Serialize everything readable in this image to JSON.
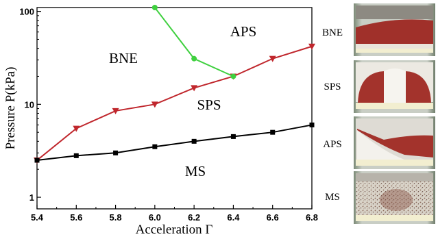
{
  "chart_data": {
    "type": "line",
    "xlabel": "Acceleration Γ",
    "ylabel": "Pressure P(kPa)",
    "xlim": [
      5.4,
      6.8
    ],
    "ylim": [
      0.75,
      110
    ],
    "yscale": "log",
    "grid": false,
    "x_ticks": [
      "5.4",
      "5.6",
      "5.8",
      "6.0",
      "6.2",
      "6.4",
      "6.6",
      "6.8"
    ],
    "y_ticks": [
      "1",
      "10",
      "100"
    ],
    "series": [
      {
        "marker": "triangle-down",
        "color": "#c0272d",
        "x": [
          5.4,
          5.6,
          5.8,
          6.0,
          6.2,
          6.4,
          6.6,
          6.8
        ],
        "y": [
          2.5,
          5.5,
          8.5,
          10,
          15,
          20,
          31,
          42
        ]
      },
      {
        "marker": "square",
        "color": "#000000",
        "x": [
          5.4,
          5.6,
          5.8,
          6.0,
          6.2,
          6.4,
          6.6,
          6.8
        ],
        "y": [
          2.5,
          2.8,
          3.0,
          3.5,
          4.0,
          4.5,
          5.0,
          6.0
        ]
      },
      {
        "marker": "circle",
        "color": "#3fd03f",
        "x": [
          6.0,
          6.2,
          6.4
        ],
        "y": [
          110,
          31,
          20
        ]
      }
    ],
    "regions": [
      "BNE",
      "APS",
      "SPS",
      "MS"
    ]
  },
  "photos": {
    "labels": [
      "BNE",
      "SPS",
      "APS",
      "MS"
    ]
  }
}
